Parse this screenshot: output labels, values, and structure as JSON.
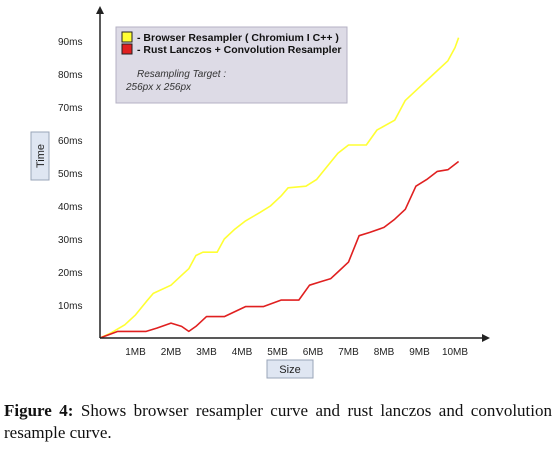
{
  "chart_data": {
    "type": "line",
    "xlabel": "Size",
    "ylabel": "Time",
    "x_tick_labels": [
      "1MB",
      "2MB",
      "3MB",
      "4MB",
      "5MB",
      "6MB",
      "7MB",
      "8MB",
      "9MB",
      "10MB"
    ],
    "y_tick_labels": [
      "10ms",
      "20ms",
      "30ms",
      "40ms",
      "50ms",
      "60ms",
      "70ms",
      "80ms",
      "90ms"
    ],
    "xlim": [
      0,
      10.3
    ],
    "ylim": [
      0,
      100
    ],
    "grid": false,
    "legend_position": "top-left",
    "legend_note_line1": "Resampling Target :",
    "legend_note_line2": "256px x 256px",
    "series": [
      {
        "name": "- Browser Resampler ( Chromium I C++ )",
        "color": "#ffff33",
        "points": [
          [
            0,
            0
          ],
          [
            0.3,
            1.5
          ],
          [
            0.7,
            4
          ],
          [
            1.0,
            7
          ],
          [
            1.3,
            11
          ],
          [
            1.5,
            13.5
          ],
          [
            2.0,
            16
          ],
          [
            2.3,
            19
          ],
          [
            2.5,
            21
          ],
          [
            2.7,
            25
          ],
          [
            2.9,
            26
          ],
          [
            3.3,
            26
          ],
          [
            3.5,
            30
          ],
          [
            3.8,
            33
          ],
          [
            4.1,
            35.5
          ],
          [
            4.5,
            38
          ],
          [
            4.8,
            40
          ],
          [
            5.1,
            43
          ],
          [
            5.3,
            45.5
          ],
          [
            5.8,
            46
          ],
          [
            6.1,
            48
          ],
          [
            6.4,
            52
          ],
          [
            6.7,
            56
          ],
          [
            7.0,
            58.5
          ],
          [
            7.5,
            58.5
          ],
          [
            7.8,
            63
          ],
          [
            8.3,
            66
          ],
          [
            8.6,
            72
          ],
          [
            9.0,
            76
          ],
          [
            9.4,
            80
          ],
          [
            9.8,
            84
          ],
          [
            10.0,
            88
          ],
          [
            10.1,
            91
          ]
        ]
      },
      {
        "name": "- Rust Lanczos + Convolution Resampler",
        "color": "#e02020",
        "points": [
          [
            0,
            0
          ],
          [
            0.5,
            2
          ],
          [
            1.0,
            2
          ],
          [
            1.3,
            2
          ],
          [
            1.6,
            3
          ],
          [
            2.0,
            4.5
          ],
          [
            2.3,
            3.5
          ],
          [
            2.5,
            2
          ],
          [
            2.7,
            3.5
          ],
          [
            3.0,
            6.5
          ],
          [
            3.5,
            6.5
          ],
          [
            3.8,
            8
          ],
          [
            4.1,
            9.5
          ],
          [
            4.6,
            9.5
          ],
          [
            5.1,
            11.5
          ],
          [
            5.6,
            11.5
          ],
          [
            5.9,
            16
          ],
          [
            6.2,
            17
          ],
          [
            6.5,
            18
          ],
          [
            6.7,
            20
          ],
          [
            7.0,
            23
          ],
          [
            7.3,
            31
          ],
          [
            7.6,
            32
          ],
          [
            8.0,
            33.5
          ],
          [
            8.3,
            36
          ],
          [
            8.6,
            39
          ],
          [
            8.9,
            46
          ],
          [
            9.2,
            48
          ],
          [
            9.5,
            50.5
          ],
          [
            9.8,
            51
          ],
          [
            10.1,
            53.5
          ]
        ]
      }
    ]
  },
  "caption": {
    "label": "Figure 4:",
    "text": " Shows browser resampler curve and rust lanczos and convolution resample curve."
  }
}
